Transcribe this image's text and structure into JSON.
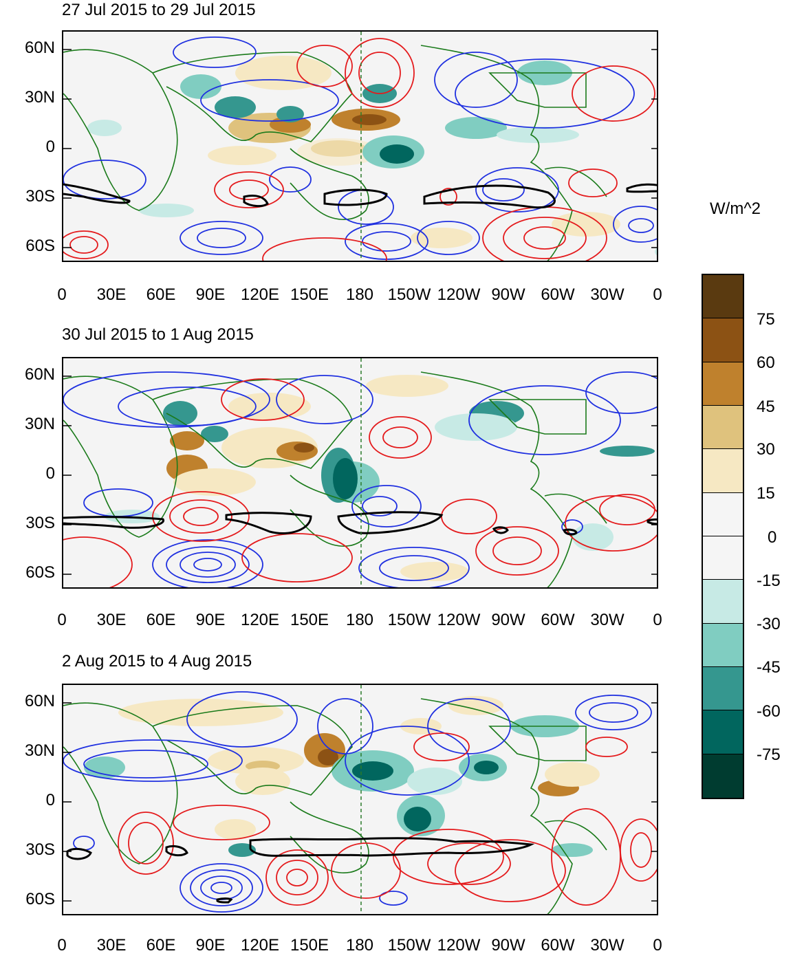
{
  "colorbar": {
    "units": "W/m^2",
    "labels": [
      "75",
      "60",
      "45",
      "30",
      "15",
      "0",
      "-15",
      "-30",
      "-45",
      "-60",
      "-75"
    ],
    "colors": [
      "#5a3a10",
      "#8c5214",
      "#bf812d",
      "#dfc27d",
      "#f6e8c3",
      "#f5f5f5",
      "#f5f5f5",
      "#c7eae5",
      "#80cdc1",
      "#35978f",
      "#01665e",
      "#003c30"
    ]
  },
  "axes": {
    "y_ticks": [
      "60N",
      "30N",
      "0",
      "30S",
      "60S"
    ],
    "x_ticks": [
      "0",
      "30E",
      "60E",
      "90E",
      "120E",
      "150E",
      "180",
      "150W",
      "120W",
      "90W",
      "60W",
      "30W",
      "0"
    ]
  },
  "panels": [
    {
      "title": "27 Jul 2015 to 29 Jul 2015"
    },
    {
      "title": "30 Jul 2015 to 1 Aug 2015"
    },
    {
      "title": "2 Aug 2015 to 4 Aug 2015"
    }
  ],
  "styles": {
    "positive_contour": "#e41a1c",
    "negative_contour": "#1f30e0",
    "zero_contour": "#000000",
    "coastline": "#1a7a1a",
    "dateline": "#2a7a2a"
  }
}
